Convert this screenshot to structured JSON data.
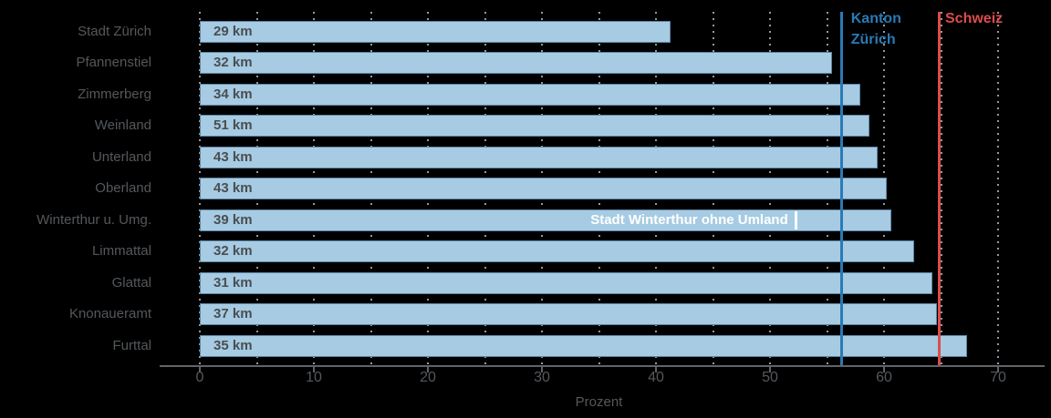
{
  "chart_data": {
    "type": "bar",
    "orientation": "horizontal",
    "title": "",
    "xlabel": "Prozent",
    "xlim": [
      0,
      70
    ],
    "xticks": [
      0,
      10,
      20,
      30,
      40,
      50,
      60,
      70
    ],
    "gridline_step": 5,
    "grid": "dotted-vertical",
    "categories": [
      "Stadt Zürich",
      "Pfannenstiel",
      "Zimmerberg",
      "Weinland",
      "Unterland",
      "Oberland",
      "Winterthur u. Umg.",
      "Limmattal",
      "Glattal",
      "Knonaueramt",
      "Furttal"
    ],
    "values": [
      41.3,
      55.4,
      57.9,
      58.7,
      59.4,
      60.2,
      60.6,
      62.6,
      64.2,
      64.6,
      67.3
    ],
    "bar_labels": [
      "29 km",
      "32 km",
      "34 km",
      "51 km",
      "43 km",
      "43 km",
      "39 km",
      "32 km",
      "31 km",
      "37 km",
      "35 km"
    ],
    "bar_color": "#a6cbe3",
    "reference_lines": [
      {
        "label": "Kanton Zürich",
        "label_lines": [
          "Kanton",
          "Zürich"
        ],
        "value": 56.3,
        "color": "#2a7ab5"
      },
      {
        "label": "Schweiz",
        "label_lines": [
          "Schweiz"
        ],
        "value": 64.8,
        "color": "#dd4c4c"
      }
    ],
    "annotation": {
      "text": "Stadt Winterthur ohne Umland",
      "row": "Winterthur u. Umg.",
      "row_index": 6,
      "value": 52.3,
      "color": "#ffffff"
    }
  }
}
